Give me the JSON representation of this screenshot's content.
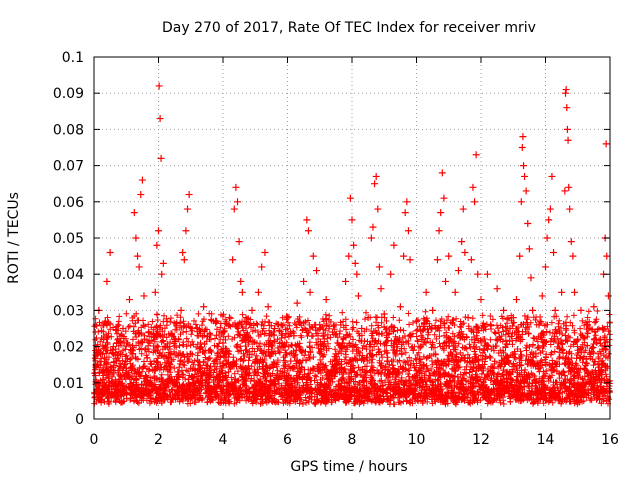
{
  "chart_data": {
    "type": "scatter",
    "title": "Day 270 of 2017, Rate Of TEC Index for receiver mriv",
    "xlabel": "GPS time / hours",
    "ylabel": "ROTI / TECUs",
    "xlim": [
      0,
      16
    ],
    "ylim": [
      0,
      0.1
    ],
    "x_ticks": [
      0,
      2,
      4,
      6,
      8,
      10,
      12,
      14,
      16
    ],
    "y_ticks": [
      0,
      0.01,
      0.02,
      0.03,
      0.04,
      0.05,
      0.06,
      0.07,
      0.08,
      0.09,
      0.1
    ],
    "x_tick_labels": [
      "0",
      "2",
      "4",
      "6",
      "8",
      "10",
      "12",
      "14",
      "16"
    ],
    "y_tick_labels": [
      "0",
      "0.01",
      "0.02",
      "0.03",
      "0.04",
      "0.05",
      "0.06",
      "0.07",
      "0.08",
      "0.09",
      "0.1"
    ],
    "grid": true,
    "marker": "+",
    "series": [
      {
        "name": "ROTI",
        "color": "#ff0000",
        "points": [
          [
            0.05,
            0.012
          ],
          [
            0.1,
            0.015
          ],
          [
            0.15,
            0.03
          ],
          [
            0.2,
            0.018
          ],
          [
            0.25,
            0.01
          ],
          [
            0.3,
            0.022
          ],
          [
            0.35,
            0.027
          ],
          [
            0.4,
            0.038
          ],
          [
            0.45,
            0.013
          ],
          [
            0.5,
            0.046
          ],
          [
            0.55,
            0.009
          ],
          [
            0.6,
            0.02
          ],
          [
            0.7,
            0.016
          ],
          [
            0.8,
            0.011
          ],
          [
            0.9,
            0.025
          ],
          [
            1.0,
            0.014
          ],
          [
            1.1,
            0.033
          ],
          [
            1.2,
            0.018
          ],
          [
            1.25,
            0.057
          ],
          [
            1.3,
            0.05
          ],
          [
            1.35,
            0.045
          ],
          [
            1.4,
            0.042
          ],
          [
            1.45,
            0.062
          ],
          [
            1.5,
            0.066
          ],
          [
            1.55,
            0.034
          ],
          [
            1.6,
            0.012
          ],
          [
            1.7,
            0.024
          ],
          [
            1.8,
            0.009
          ],
          [
            1.9,
            0.035
          ],
          [
            1.95,
            0.048
          ],
          [
            2.0,
            0.052
          ],
          [
            2.02,
            0.092
          ],
          [
            2.05,
            0.083
          ],
          [
            2.08,
            0.072
          ],
          [
            2.1,
            0.04
          ],
          [
            2.15,
            0.043
          ],
          [
            2.2,
            0.02
          ],
          [
            2.3,
            0.011
          ],
          [
            2.4,
            0.016
          ],
          [
            2.5,
            0.022
          ],
          [
            2.6,
            0.013
          ],
          [
            2.7,
            0.03
          ],
          [
            2.75,
            0.046
          ],
          [
            2.8,
            0.044
          ],
          [
            2.85,
            0.052
          ],
          [
            2.9,
            0.058
          ],
          [
            2.95,
            0.062
          ],
          [
            3.0,
            0.018
          ],
          [
            3.1,
            0.01
          ],
          [
            3.2,
            0.025
          ],
          [
            3.3,
            0.014
          ],
          [
            3.4,
            0.031
          ],
          [
            3.5,
            0.012
          ],
          [
            3.6,
            0.019
          ],
          [
            3.7,
            0.008
          ],
          [
            3.8,
            0.027
          ],
          [
            3.9,
            0.013
          ],
          [
            4.0,
            0.021
          ],
          [
            4.1,
            0.015
          ],
          [
            4.2,
            0.028
          ],
          [
            4.3,
            0.044
          ],
          [
            4.35,
            0.058
          ],
          [
            4.4,
            0.064
          ],
          [
            4.45,
            0.06
          ],
          [
            4.5,
            0.049
          ],
          [
            4.55,
            0.038
          ],
          [
            4.6,
            0.035
          ],
          [
            4.7,
            0.022
          ],
          [
            4.8,
            0.012
          ],
          [
            4.9,
            0.03
          ],
          [
            5.0,
            0.016
          ],
          [
            5.1,
            0.035
          ],
          [
            5.2,
            0.042
          ],
          [
            5.3,
            0.046
          ],
          [
            5.4,
            0.031
          ],
          [
            5.5,
            0.018
          ],
          [
            5.6,
            0.025
          ],
          [
            5.7,
            0.011
          ],
          [
            5.8,
            0.02
          ],
          [
            5.9,
            0.014
          ],
          [
            6.0,
            0.028
          ],
          [
            6.1,
            0.016
          ],
          [
            6.2,
            0.023
          ],
          [
            6.3,
            0.032
          ],
          [
            6.4,
            0.019
          ],
          [
            6.5,
            0.038
          ],
          [
            6.6,
            0.055
          ],
          [
            6.65,
            0.052
          ],
          [
            6.7,
            0.035
          ],
          [
            6.8,
            0.045
          ],
          [
            6.9,
            0.041
          ],
          [
            7.0,
            0.026
          ],
          [
            7.1,
            0.015
          ],
          [
            7.2,
            0.033
          ],
          [
            7.3,
            0.012
          ],
          [
            7.4,
            0.024
          ],
          [
            7.5,
            0.018
          ],
          [
            7.6,
            0.009
          ],
          [
            7.7,
            0.021
          ],
          [
            7.8,
            0.038
          ],
          [
            7.9,
            0.045
          ],
          [
            7.95,
            0.061
          ],
          [
            8.0,
            0.055
          ],
          [
            8.05,
            0.048
          ],
          [
            8.1,
            0.043
          ],
          [
            8.15,
            0.04
          ],
          [
            8.2,
            0.034
          ],
          [
            8.3,
            0.025
          ],
          [
            8.4,
            0.013
          ],
          [
            8.5,
            0.028
          ],
          [
            8.6,
            0.05
          ],
          [
            8.65,
            0.053
          ],
          [
            8.7,
            0.065
          ],
          [
            8.75,
            0.067
          ],
          [
            8.8,
            0.058
          ],
          [
            8.85,
            0.042
          ],
          [
            8.9,
            0.036
          ],
          [
            9.0,
            0.029
          ],
          [
            9.1,
            0.016
          ],
          [
            9.2,
            0.04
          ],
          [
            9.3,
            0.048
          ],
          [
            9.4,
            0.022
          ],
          [
            9.5,
            0.031
          ],
          [
            9.6,
            0.045
          ],
          [
            9.65,
            0.057
          ],
          [
            9.7,
            0.06
          ],
          [
            9.75,
            0.052
          ],
          [
            9.8,
            0.044
          ],
          [
            9.9,
            0.019
          ],
          [
            10.0,
            0.027
          ],
          [
            10.1,
            0.013
          ],
          [
            10.2,
            0.022
          ],
          [
            10.3,
            0.035
          ],
          [
            10.4,
            0.012
          ],
          [
            10.5,
            0.03
          ],
          [
            10.6,
            0.025
          ],
          [
            10.65,
            0.044
          ],
          [
            10.7,
            0.052
          ],
          [
            10.75,
            0.057
          ],
          [
            10.8,
            0.068
          ],
          [
            10.85,
            0.061
          ],
          [
            10.9,
            0.038
          ],
          [
            11.0,
            0.045
          ],
          [
            11.1,
            0.021
          ],
          [
            11.2,
            0.035
          ],
          [
            11.3,
            0.041
          ],
          [
            11.4,
            0.049
          ],
          [
            11.45,
            0.058
          ],
          [
            11.5,
            0.046
          ],
          [
            11.6,
            0.028
          ],
          [
            11.7,
            0.044
          ],
          [
            11.75,
            0.064
          ],
          [
            11.8,
            0.06
          ],
          [
            11.85,
            0.073
          ],
          [
            11.9,
            0.04
          ],
          [
            12.0,
            0.033
          ],
          [
            12.1,
            0.019
          ],
          [
            12.2,
            0.04
          ],
          [
            12.3,
            0.026
          ],
          [
            12.4,
            0.014
          ],
          [
            12.5,
            0.036
          ],
          [
            12.6,
            0.022
          ],
          [
            12.7,
            0.03
          ],
          [
            12.8,
            0.017
          ],
          [
            12.9,
            0.025
          ],
          [
            13.0,
            0.028
          ],
          [
            13.1,
            0.033
          ],
          [
            13.2,
            0.045
          ],
          [
            13.25,
            0.06
          ],
          [
            13.28,
            0.075
          ],
          [
            13.3,
            0.078
          ],
          [
            13.32,
            0.07
          ],
          [
            13.35,
            0.067
          ],
          [
            13.4,
            0.063
          ],
          [
            13.45,
            0.054
          ],
          [
            13.5,
            0.047
          ],
          [
            13.55,
            0.039
          ],
          [
            13.6,
            0.03
          ],
          [
            13.7,
            0.018
          ],
          [
            13.8,
            0.026
          ],
          [
            13.9,
            0.034
          ],
          [
            14.0,
            0.042
          ],
          [
            14.05,
            0.05
          ],
          [
            14.1,
            0.055
          ],
          [
            14.15,
            0.058
          ],
          [
            14.2,
            0.067
          ],
          [
            14.25,
            0.046
          ],
          [
            14.3,
            0.03
          ],
          [
            14.4,
            0.021
          ],
          [
            14.5,
            0.035
          ],
          [
            14.6,
            0.063
          ],
          [
            14.62,
            0.09
          ],
          [
            14.64,
            0.091
          ],
          [
            14.66,
            0.086
          ],
          [
            14.68,
            0.08
          ],
          [
            14.7,
            0.077
          ],
          [
            14.72,
            0.064
          ],
          [
            14.75,
            0.058
          ],
          [
            14.8,
            0.049
          ],
          [
            14.85,
            0.045
          ],
          [
            14.9,
            0.035
          ],
          [
            15.0,
            0.022
          ],
          [
            15.1,
            0.03
          ],
          [
            15.2,
            0.014
          ],
          [
            15.3,
            0.026
          ],
          [
            15.4,
            0.018
          ],
          [
            15.5,
            0.031
          ],
          [
            15.6,
            0.011
          ],
          [
            15.7,
            0.022
          ],
          [
            15.8,
            0.04
          ],
          [
            15.85,
            0.05
          ],
          [
            15.88,
            0.076
          ],
          [
            15.9,
            0.045
          ],
          [
            15.95,
            0.034
          ]
        ]
      }
    ]
  }
}
